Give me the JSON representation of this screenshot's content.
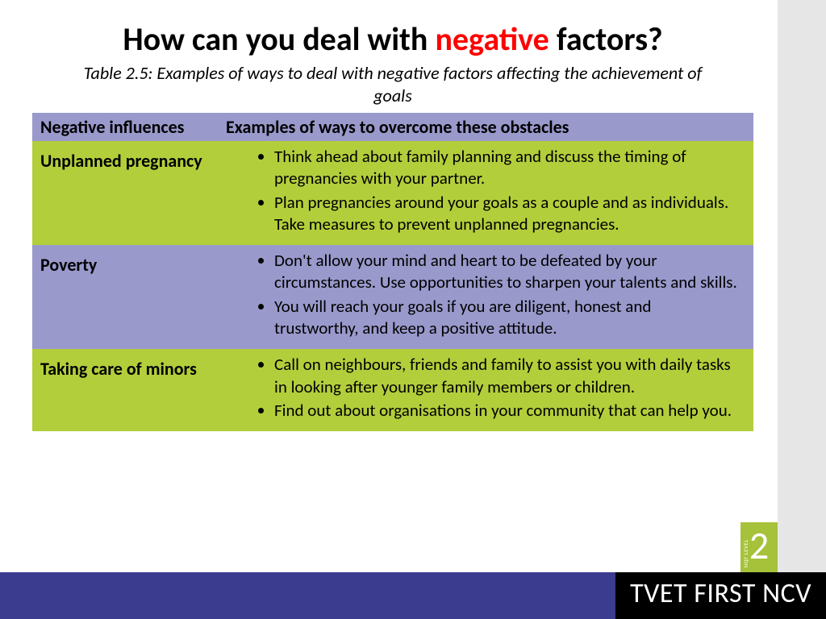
{
  "title": {
    "before": "How can you deal with ",
    "highlight": "negative",
    "after": " factors?"
  },
  "subtitle": "Table 2.5: Examples of ways to deal with negative factors affecting the achievement of goals",
  "table": {
    "header_bg": "#9999cc",
    "row_colors": [
      "#b3ce3b",
      "#9999cc",
      "#b3ce3b"
    ],
    "col1_header": "Negative influences",
    "col2_header": "Examples of ways to overcome these obstacles",
    "rows": [
      {
        "label": "Unplanned pregnancy",
        "items": [
          "Think ahead about family planning and discuss the timing of pregnancies with your partner.",
          "Plan pregnancies around your goals as a couple and as individuals. Take measures to prevent unplanned pregnancies."
        ]
      },
      {
        "label": "Poverty",
        "items": [
          "Don't allow your mind and heart to be defeated by your circumstances. Use opportunities to sharpen your talents and skills.",
          "You will reach your goals if you are diligent, honest and trustworthy, and keep a positive attitude."
        ]
      },
      {
        "label": "Taking care of minors",
        "items": [
          "Call on neighbours, friends and family to assist you with daily tasks in looking after younger family members or children.",
          "Find out about organisations in your community that can help you."
        ]
      }
    ]
  },
  "footer": {
    "brand": "TVET FIRST NCV",
    "level_label": "NQF LEVEL",
    "level_number": "2"
  }
}
